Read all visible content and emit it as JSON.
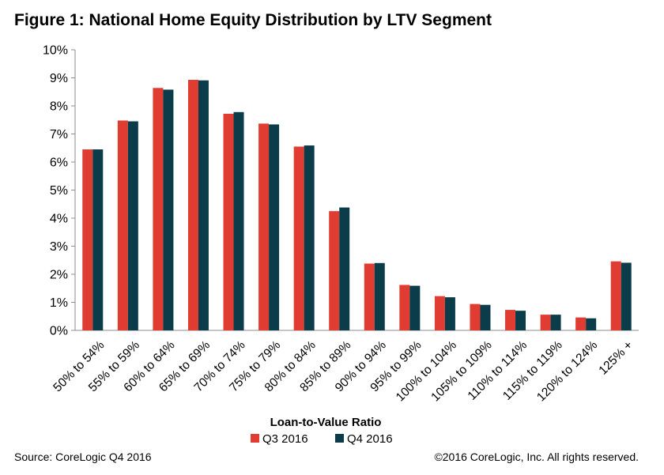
{
  "chart_data": {
    "type": "bar",
    "title": "Figure 1: National Home Equity Distribution by LTV Segment",
    "xlabel": "Loan-to-Value Ratio",
    "ylabel": "",
    "ylim": [
      0,
      10
    ],
    "yticks": [
      "0%",
      "1%",
      "2%",
      "3%",
      "4%",
      "5%",
      "6%",
      "7%",
      "8%",
      "9%",
      "10%"
    ],
    "grid": false,
    "legend_position": "bottom",
    "categories": [
      "50% to 54%",
      "55% to 59%",
      "60% to 64%",
      "65% to 69%",
      "70% to 74%",
      "75% to 79%",
      "80% to 84%",
      "85% to 89%",
      "90% to 94%",
      "95% to 99%",
      "100% to 104%",
      "105% to 109%",
      "110% to 114%",
      "115% to 119%",
      "120% to 124%",
      "125% +"
    ],
    "series": [
      {
        "name": "Q3 2016",
        "color": "#e03c31",
        "values": [
          6.45,
          7.48,
          8.64,
          8.93,
          7.72,
          7.37,
          6.55,
          4.25,
          2.38,
          1.62,
          1.22,
          0.94,
          0.73,
          0.56,
          0.46,
          2.46
        ]
      },
      {
        "name": "Q4 2016",
        "color": "#0b3c49",
        "values": [
          6.45,
          7.45,
          8.58,
          8.91,
          7.78,
          7.34,
          6.59,
          4.38,
          2.4,
          1.59,
          1.18,
          0.91,
          0.7,
          0.56,
          0.43,
          2.41
        ]
      }
    ]
  },
  "footer": {
    "source": "Source: CoreLogic Q4 2016",
    "copyright": "©2016 CoreLogic, Inc. All rights reserved."
  }
}
